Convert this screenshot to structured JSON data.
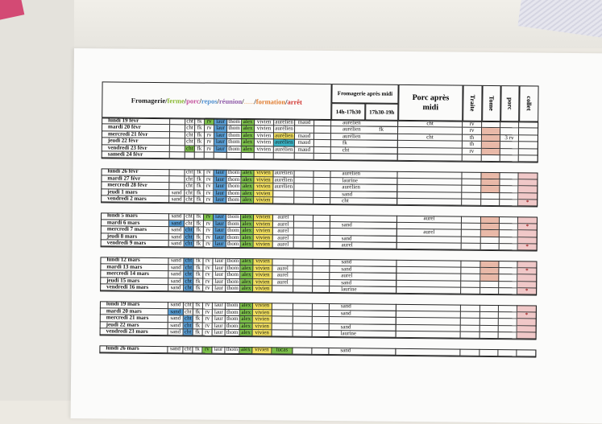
{
  "header": {
    "title_parts": [
      {
        "text": "Fromagerie",
        "color": "#1a1a1a"
      },
      {
        "text": "/",
        "color": "#1a1a1a"
      },
      {
        "text": "ferme",
        "color": "#8ab832"
      },
      {
        "text": "/",
        "color": "#1a1a1a"
      },
      {
        "text": "porc",
        "color": "#c24c9a"
      },
      {
        "text": "/",
        "color": "#1a1a1a"
      },
      {
        "text": "repos",
        "color": "#4f8fcf"
      },
      {
        "text": "/",
        "color": "#1a1a1a"
      },
      {
        "text": "réunion",
        "color": "#8e5aa8"
      },
      {
        "text": "/",
        "color": "#1a1a1a"
      },
      {
        "text": "......",
        "color": "#f3c8a0"
      },
      {
        "text": "/",
        "color": "#1a1a1a"
      },
      {
        "text": "formation",
        "color": "#e07a2c"
      },
      {
        "text": "/",
        "color": "#1a1a1a"
      },
      {
        "text": "arrêt",
        "color": "#d0302a"
      }
    ],
    "fromagerie_pm": "Fromagerie après midi",
    "slot1": "14h-17h30",
    "slot2": "17h30-19h",
    "porc_pm": "Porc après midi",
    "traite": "Traite",
    "tome": "Tome",
    "porc": "porc",
    "collet": "collet"
  },
  "colors": {
    "blue": "#5aa0d8",
    "green": "#7cc04a",
    "yellow": "#f2e060",
    "cyan": "#3cb6c8",
    "salmon": "#e9b9a8",
    "pink": "#f0c8c8"
  },
  "weeks": [
    {
      "rows": [
        {
          "day": "lundi 19 févr",
          "staff": [
            "",
            "cht",
            "fk",
            "rv",
            "laur",
            "thom",
            "alex",
            "vivien",
            "aurélien",
            "maud"
          ],
          "fills": [
            "",
            "",
            "",
            "green",
            "blue",
            "",
            "green",
            "",
            "",
            ""
          ],
          "fm1": "aurélien",
          "fm2": "",
          "porc": "cht",
          "traite": "rv",
          "tome": "",
          "porcx": "",
          "collet": ""
        },
        {
          "day": "mardi 20 févr",
          "staff": [
            "",
            "cht",
            "fk",
            "rv",
            "laur",
            "thom",
            "alex",
            "vivien",
            "aurélien",
            ""
          ],
          "fills": [
            "",
            "",
            "",
            "",
            "blue",
            "",
            "green",
            "",
            "",
            ""
          ],
          "fm1": "aurélien",
          "fm2": "fk",
          "porc": "",
          "traite": "rv",
          "tome": "",
          "porcx": "",
          "collet": ""
        },
        {
          "day": "mercredi 21 févr",
          "staff": [
            "",
            "cht",
            "fk",
            "rv",
            "laur",
            "thom",
            "alex",
            "vivien",
            "aurélien",
            "maud"
          ],
          "fills": [
            "",
            "",
            "",
            "",
            "blue",
            "",
            "green",
            "",
            "yellow",
            ""
          ],
          "fm1": "aurélien",
          "fm2": "",
          "porc": "cht",
          "traite": "th",
          "tome": "",
          "porcx": "3 rv",
          "collet": ""
        },
        {
          "day": "jeudi 22 févr",
          "staff": [
            "",
            "cht",
            "fk",
            "rv",
            "laur",
            "thom",
            "alex",
            "vivien",
            "aurélien",
            "maud"
          ],
          "fills": [
            "",
            "",
            "",
            "",
            "blue",
            "",
            "green",
            "",
            "cyan",
            ""
          ],
          "fm1": "fk",
          "fm2": "",
          "porc": "",
          "traite": "th",
          "tome": "",
          "porcx": "",
          "collet": ""
        },
        {
          "day": "vendredi 23 févr",
          "staff": [
            "",
            "cht",
            "fk",
            "rv",
            "laur",
            "thom",
            "alex",
            "vivien",
            "aurélien",
            "maud"
          ],
          "fills": [
            "",
            "green",
            "",
            "",
            "blue",
            "",
            "green",
            "",
            "",
            ""
          ],
          "fm1": "cht",
          "fm2": "",
          "porc": "",
          "traite": "rv",
          "tome": "",
          "porcx": "",
          "collet": ""
        },
        {
          "day": "samedi 24 févr",
          "staff": [
            "",
            "",
            "",
            "",
            "",
            "",
            "",
            "",
            "",
            ""
          ],
          "fills": [
            "",
            "",
            "",
            "",
            "",
            "",
            "",
            "",
            "",
            ""
          ],
          "fm1": "",
          "fm2": "",
          "porc": "",
          "traite": "",
          "tome": "",
          "porcx": "",
          "collet": ""
        }
      ]
    },
    {
      "rows": [
        {
          "day": "lundi 26 févr",
          "staff": [
            "",
            "cht",
            "fk",
            "rv",
            "laur",
            "thom",
            "alex",
            "vivien",
            "aurélien",
            ""
          ],
          "fills": [
            "",
            "",
            "",
            "",
            "blue",
            "",
            "green",
            "yellow",
            "",
            ""
          ],
          "fm1": "aurélien",
          "fm2": "",
          "porc": "",
          "traite": "",
          "tome": "",
          "porcx": "",
          "collet": ""
        },
        {
          "day": "mardi 27 févr",
          "staff": [
            "",
            "cht",
            "fk",
            "rv",
            "laur",
            "thom",
            "alex",
            "vivien",
            "aurélien",
            ""
          ],
          "fills": [
            "",
            "",
            "",
            "",
            "blue",
            "",
            "green",
            "yellow",
            "",
            ""
          ],
          "fm1": "laurine",
          "fm2": "",
          "porc": "",
          "traite": "",
          "tome": "",
          "porcx": "",
          "collet": ""
        },
        {
          "day": "mercredi 28 févr",
          "staff": [
            "",
            "cht",
            "fk",
            "rv",
            "laur",
            "thom",
            "alex",
            "vivien",
            "aurélien",
            ""
          ],
          "fills": [
            "",
            "",
            "",
            "",
            "blue",
            "",
            "green",
            "yellow",
            "",
            ""
          ],
          "fm1": "aurélien",
          "fm2": "",
          "porc": "",
          "traite": "",
          "tome": "",
          "porcx": "",
          "collet": ""
        },
        {
          "day": "jeudi 1 mars",
          "staff": [
            "sand",
            "cht",
            "fk",
            "rv",
            "laur",
            "thom",
            "alex",
            "vivien",
            "",
            ""
          ],
          "fills": [
            "",
            "",
            "",
            "",
            "blue",
            "",
            "green",
            "yellow",
            "",
            ""
          ],
          "fm1": "sand",
          "fm2": "",
          "porc": "",
          "traite": "",
          "tome": "",
          "porcx": "",
          "collet": ""
        },
        {
          "day": "vendredi 2 mars",
          "staff": [
            "sand",
            "cht",
            "fk",
            "rv",
            "laur",
            "thom",
            "alex",
            "vivien",
            "",
            ""
          ],
          "fills": [
            "",
            "",
            "",
            "",
            "blue",
            "",
            "green",
            "yellow",
            "",
            ""
          ],
          "fm1": "cht",
          "fm2": "",
          "porc": "",
          "traite": "",
          "tome": "",
          "porcx": "",
          "collet": "*"
        }
      ]
    },
    {
      "rows": [
        {
          "day": "lundi 5 mars",
          "staff": [
            "sand",
            "cht",
            "fk",
            "rv",
            "laur",
            "thom",
            "alex",
            "vivien",
            "aurel",
            ""
          ],
          "fills": [
            "",
            "",
            "",
            "green",
            "blue",
            "",
            "green",
            "yellow",
            "",
            ""
          ],
          "fm1": "",
          "fm2": "",
          "porc": "aurel",
          "traite": "",
          "tome": "",
          "porcx": "",
          "collet": ""
        },
        {
          "day": "mardi 6 mars",
          "staff": [
            "sand",
            "cht",
            "fk",
            "rv",
            "laur",
            "thom",
            "alex",
            "vivien",
            "aurel",
            ""
          ],
          "fills": [
            "blue",
            "",
            "",
            "",
            "blue",
            "",
            "green",
            "yellow",
            "",
            ""
          ],
          "fm1": "sand",
          "fm2": "",
          "porc": "",
          "traite": "",
          "tome": "",
          "porcx": "",
          "collet": "*"
        },
        {
          "day": "mercredi 7 mars",
          "staff": [
            "sand",
            "cht",
            "fk",
            "rv",
            "laur",
            "thom",
            "alex",
            "vivien",
            "aurel",
            ""
          ],
          "fills": [
            "",
            "blue",
            "",
            "",
            "blue",
            "",
            "green",
            "yellow",
            "",
            ""
          ],
          "fm1": "",
          "fm2": "",
          "porc": "aurel",
          "traite": "",
          "tome": "",
          "porcx": "",
          "collet": ""
        },
        {
          "day": "jeudi 8 mars",
          "staff": [
            "sand",
            "cht",
            "fk",
            "rv",
            "laur",
            "thom",
            "alex",
            "vivien",
            "aurel",
            ""
          ],
          "fills": [
            "",
            "blue",
            "",
            "",
            "blue",
            "",
            "green",
            "yellow",
            "",
            ""
          ],
          "fm1": "sand",
          "fm2": "",
          "porc": "",
          "traite": "",
          "tome": "",
          "porcx": "",
          "collet": ""
        },
        {
          "day": "vendredi 9 mars",
          "staff": [
            "sand",
            "cht",
            "fk",
            "rv",
            "laur",
            "thom",
            "alex",
            "vivien",
            "aurel",
            ""
          ],
          "fills": [
            "",
            "blue",
            "",
            "",
            "blue",
            "",
            "green",
            "yellow",
            "",
            ""
          ],
          "fm1": "aurel",
          "fm2": "",
          "porc": "",
          "traite": "",
          "tome": "",
          "porcx": "",
          "collet": "*"
        }
      ]
    },
    {
      "rows": [
        {
          "day": "lundi 12 mars",
          "staff": [
            "sand",
            "cht",
            "fk",
            "rv",
            "laur",
            "thom",
            "alex",
            "vivien",
            "",
            ""
          ],
          "fills": [
            "",
            "blue",
            "",
            "",
            "",
            "",
            "green",
            "yellow",
            "",
            ""
          ],
          "fm1": "sand",
          "fm2": "",
          "porc": "",
          "traite": "",
          "tome": "",
          "porcx": "",
          "collet": ""
        },
        {
          "day": "mardi 13 mars",
          "staff": [
            "sand",
            "cht",
            "fk",
            "rv",
            "laur",
            "thom",
            "alex",
            "vivien",
            "aurel",
            ""
          ],
          "fills": [
            "",
            "blue",
            "",
            "",
            "",
            "",
            "green",
            "yellow",
            "",
            ""
          ],
          "fm1": "sand",
          "fm2": "",
          "porc": "",
          "traite": "",
          "tome": "",
          "porcx": "",
          "collet": "*"
        },
        {
          "day": "mercredi 14 mars",
          "staff": [
            "sand",
            "cht",
            "fk",
            "rv",
            "laur",
            "thom",
            "alex",
            "vivien",
            "aurel",
            ""
          ],
          "fills": [
            "",
            "blue",
            "",
            "",
            "",
            "",
            "green",
            "yellow",
            "",
            ""
          ],
          "fm1": "aurel",
          "fm2": "",
          "porc": "",
          "traite": "",
          "tome": "",
          "porcx": "",
          "collet": ""
        },
        {
          "day": "jeudi 15 mars",
          "staff": [
            "sand",
            "cht",
            "fk",
            "rv",
            "laur",
            "thom",
            "alex",
            "vivien",
            "aurel",
            ""
          ],
          "fills": [
            "",
            "blue",
            "",
            "",
            "",
            "",
            "green",
            "yellow",
            "",
            ""
          ],
          "fm1": "sand",
          "fm2": "",
          "porc": "",
          "traite": "",
          "tome": "",
          "porcx": "",
          "collet": ""
        },
        {
          "day": "vendredi 16 mars",
          "staff": [
            "sand",
            "cht",
            "fk",
            "rv",
            "laur",
            "thom",
            "alex",
            "vivien",
            "",
            ""
          ],
          "fills": [
            "",
            "blue",
            "",
            "",
            "",
            "",
            "green",
            "yellow",
            "",
            ""
          ],
          "fm1": "laurine",
          "fm2": "",
          "porc": "",
          "traite": "",
          "tome": "",
          "porcx": "",
          "collet": "*"
        }
      ]
    },
    {
      "rows": [
        {
          "day": "lundi 19 mars",
          "staff": [
            "sand",
            "cht",
            "fk",
            "rv",
            "laur",
            "thom",
            "alex",
            "vivien",
            "",
            ""
          ],
          "fills": [
            "",
            "",
            "",
            "",
            "",
            "",
            "green",
            "yellow",
            "",
            ""
          ],
          "fm1": "sand",
          "fm2": "",
          "porc": "",
          "traite": "",
          "tome": "",
          "porcx": "",
          "collet": ""
        },
        {
          "day": "mardi 20 mars",
          "staff": [
            "sand",
            "cht",
            "fk",
            "rv",
            "laur",
            "thom",
            "alex",
            "vivien",
            "",
            ""
          ],
          "fills": [
            "blue",
            "",
            "",
            "",
            "",
            "",
            "green",
            "yellow",
            "",
            ""
          ],
          "fm1": "sand",
          "fm2": "",
          "porc": "",
          "traite": "",
          "tome": "",
          "porcx": "",
          "collet": "*"
        },
        {
          "day": "mercredi 21 mars",
          "staff": [
            "sand",
            "cht",
            "fk",
            "rv",
            "laur",
            "thom",
            "alex",
            "vivien",
            "",
            ""
          ],
          "fills": [
            "",
            "blue",
            "",
            "",
            "",
            "",
            "green",
            "yellow",
            "",
            ""
          ],
          "fm1": "",
          "fm2": "",
          "porc": "",
          "traite": "",
          "tome": "",
          "porcx": "",
          "collet": ""
        },
        {
          "day": "jeudi 22 mars",
          "staff": [
            "sand",
            "cht",
            "fk",
            "rv",
            "laur",
            "thom",
            "alex",
            "vivien",
            "",
            ""
          ],
          "fills": [
            "",
            "blue",
            "",
            "",
            "",
            "",
            "green",
            "yellow",
            "",
            ""
          ],
          "fm1": "sand",
          "fm2": "",
          "porc": "",
          "traite": "",
          "tome": "",
          "porcx": "",
          "collet": ""
        },
        {
          "day": "vendredi 23 mars",
          "staff": [
            "sand",
            "cht",
            "fk",
            "rv",
            "laur",
            "thom",
            "alex",
            "vivien",
            "",
            ""
          ],
          "fills": [
            "",
            "blue",
            "",
            "",
            "",
            "",
            "green",
            "yellow",
            "",
            ""
          ],
          "fm1": "laurine",
          "fm2": "",
          "porc": "",
          "traite": "",
          "tome": "",
          "porcx": "",
          "collet": ""
        }
      ]
    },
    {
      "rows": [
        {
          "day": "lundi 26 mars",
          "staff": [
            "sand",
            "cht",
            "fk",
            "rv",
            "laur",
            "thom",
            "alex",
            "vivien",
            "lucas",
            ""
          ],
          "fills": [
            "",
            "",
            "",
            "green",
            "",
            "",
            "green",
            "yellow",
            "green",
            ""
          ],
          "fm1": "sand",
          "fm2": "",
          "porc": "",
          "traite": "",
          "tome": "",
          "porcx": "",
          "collet": ""
        }
      ]
    }
  ]
}
